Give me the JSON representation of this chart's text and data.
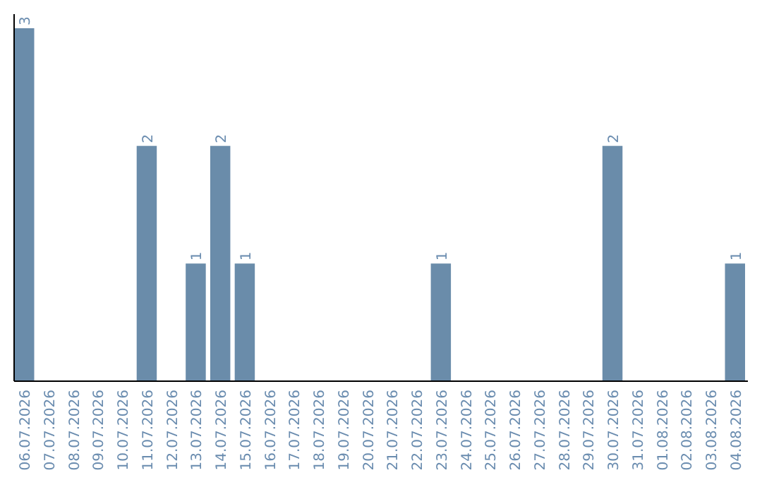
{
  "chart_data": {
    "type": "bar",
    "categories": [
      "06.07.2026",
      "07.07.2026",
      "08.07.2026",
      "09.07.2026",
      "10.07.2026",
      "11.07.2026",
      "12.07.2026",
      "13.07.2026",
      "14.07.2026",
      "15.07.2026",
      "16.07.2026",
      "17.07.2026",
      "18.07.2026",
      "19.07.2026",
      "20.07.2026",
      "21.07.2026",
      "22.07.2026",
      "23.07.2026",
      "24.07.2026",
      "25.07.2026",
      "26.07.2026",
      "27.07.2026",
      "28.07.2026",
      "29.07.2026",
      "30.07.2026",
      "31.07.2026",
      "01.08.2026",
      "02.08.2026",
      "03.08.2026",
      "04.08.2026"
    ],
    "values": [
      3,
      0,
      0,
      0,
      0,
      2,
      0,
      1,
      2,
      1,
      0,
      0,
      0,
      0,
      0,
      0,
      0,
      1,
      0,
      0,
      0,
      0,
      0,
      0,
      2,
      0,
      0,
      0,
      0,
      1
    ],
    "value_labels": [
      "3",
      null,
      null,
      null,
      null,
      "2",
      null,
      "1",
      "2",
      "1",
      null,
      null,
      null,
      null,
      null,
      null,
      null,
      "1",
      null,
      null,
      null,
      null,
      null,
      null,
      "2",
      null,
      null,
      null,
      null,
      "1"
    ],
    "color": "#6a8caa",
    "tick_labels": "x"
  }
}
